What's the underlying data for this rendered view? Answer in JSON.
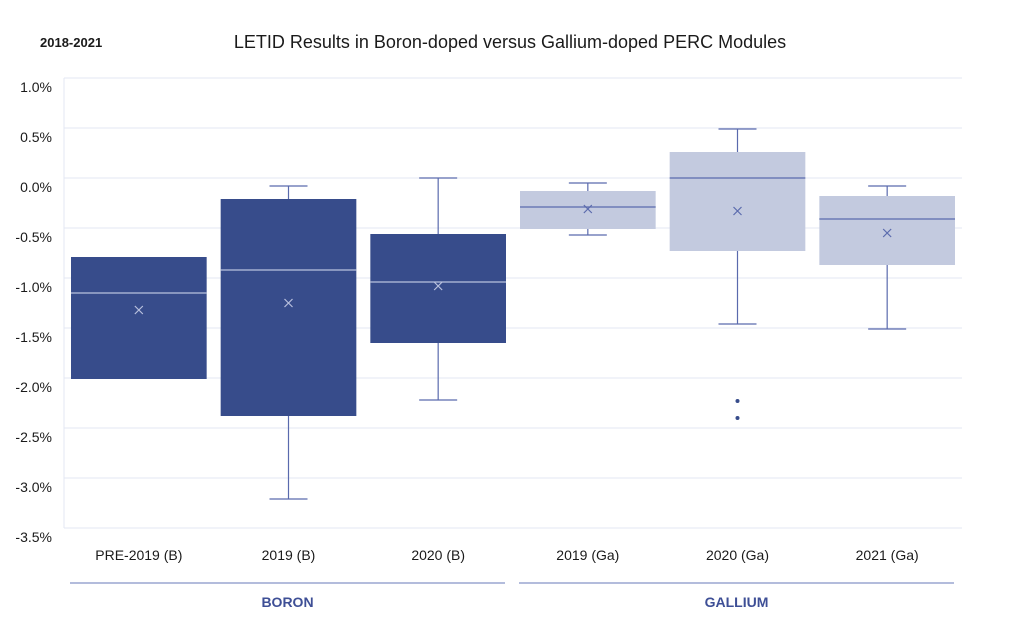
{
  "chart_data": {
    "type": "box",
    "subtitle": "2018-2021",
    "title": "LETID Results in Boron-doped versus Gallium-doped PERC Modules",
    "xlabel": "",
    "ylabel": "",
    "ylim": [
      -3.5,
      1.0
    ],
    "yticks": [
      1.0,
      0.5,
      0.0,
      -0.5,
      -1.0,
      -1.5,
      -2.0,
      -2.5,
      -3.0,
      -3.5
    ],
    "ytick_labels": [
      "1.0%",
      "0.5%",
      "0.0%",
      "-0.5%",
      "-1.0%",
      "-1.5%",
      "-2.0%",
      "-2.5%",
      "-3.0%",
      "-3.5%"
    ],
    "grid": true,
    "categories": [
      "PRE-2019 (B)",
      "2019 (B)",
      "2020 (B)",
      "2019 (Ga)",
      "2020 (Ga)",
      "2021 (Ga)"
    ],
    "groups": [
      {
        "label": "BORON",
        "categories": [
          "PRE-2019 (B)",
          "2019 (B)",
          "2020 (B)"
        ]
      },
      {
        "label": "GALLIUM",
        "categories": [
          "2019 (Ga)",
          "2020 (Ga)",
          "2021 (Ga)"
        ]
      }
    ],
    "boxes": [
      {
        "category": "PRE-2019 (B)",
        "min": -2.01,
        "q1": -2.01,
        "median": -1.15,
        "q3": -0.79,
        "max": -0.79,
        "mean": -1.32,
        "outliers": [],
        "fill": "dark"
      },
      {
        "category": "2019 (B)",
        "min": -3.21,
        "q1": -2.38,
        "median": -0.92,
        "q3": -0.21,
        "max": -0.08,
        "mean": -1.25,
        "outliers": [],
        "fill": "dark"
      },
      {
        "category": "2020 (B)",
        "min": -2.22,
        "q1": -1.65,
        "median": -1.04,
        "q3": -0.56,
        "max": 0.0,
        "mean": -1.08,
        "outliers": [],
        "fill": "dark"
      },
      {
        "category": "2019 (Ga)",
        "min": -0.57,
        "q1": -0.51,
        "median": -0.29,
        "q3": -0.13,
        "max": -0.05,
        "mean": -0.31,
        "outliers": [],
        "fill": "light"
      },
      {
        "category": "2020 (Ga)",
        "min": -1.46,
        "q1": -0.73,
        "median": 0.0,
        "q3": 0.26,
        "max": 0.49,
        "mean": -0.33,
        "outliers": [
          -2.23,
          -2.4
        ],
        "fill": "light"
      },
      {
        "category": "2021 (Ga)",
        "min": -1.51,
        "q1": -0.87,
        "median": -0.41,
        "q3": -0.18,
        "max": -0.08,
        "mean": -0.55,
        "outliers": [],
        "fill": "light"
      }
    ],
    "colors": {
      "dark": "#374c8b",
      "light": "#c3cadf",
      "whisker": "#5a6aad",
      "grid": "#e3e7f3",
      "group_label": "#3e4f96",
      "group_line": "#9aa6d0"
    }
  }
}
